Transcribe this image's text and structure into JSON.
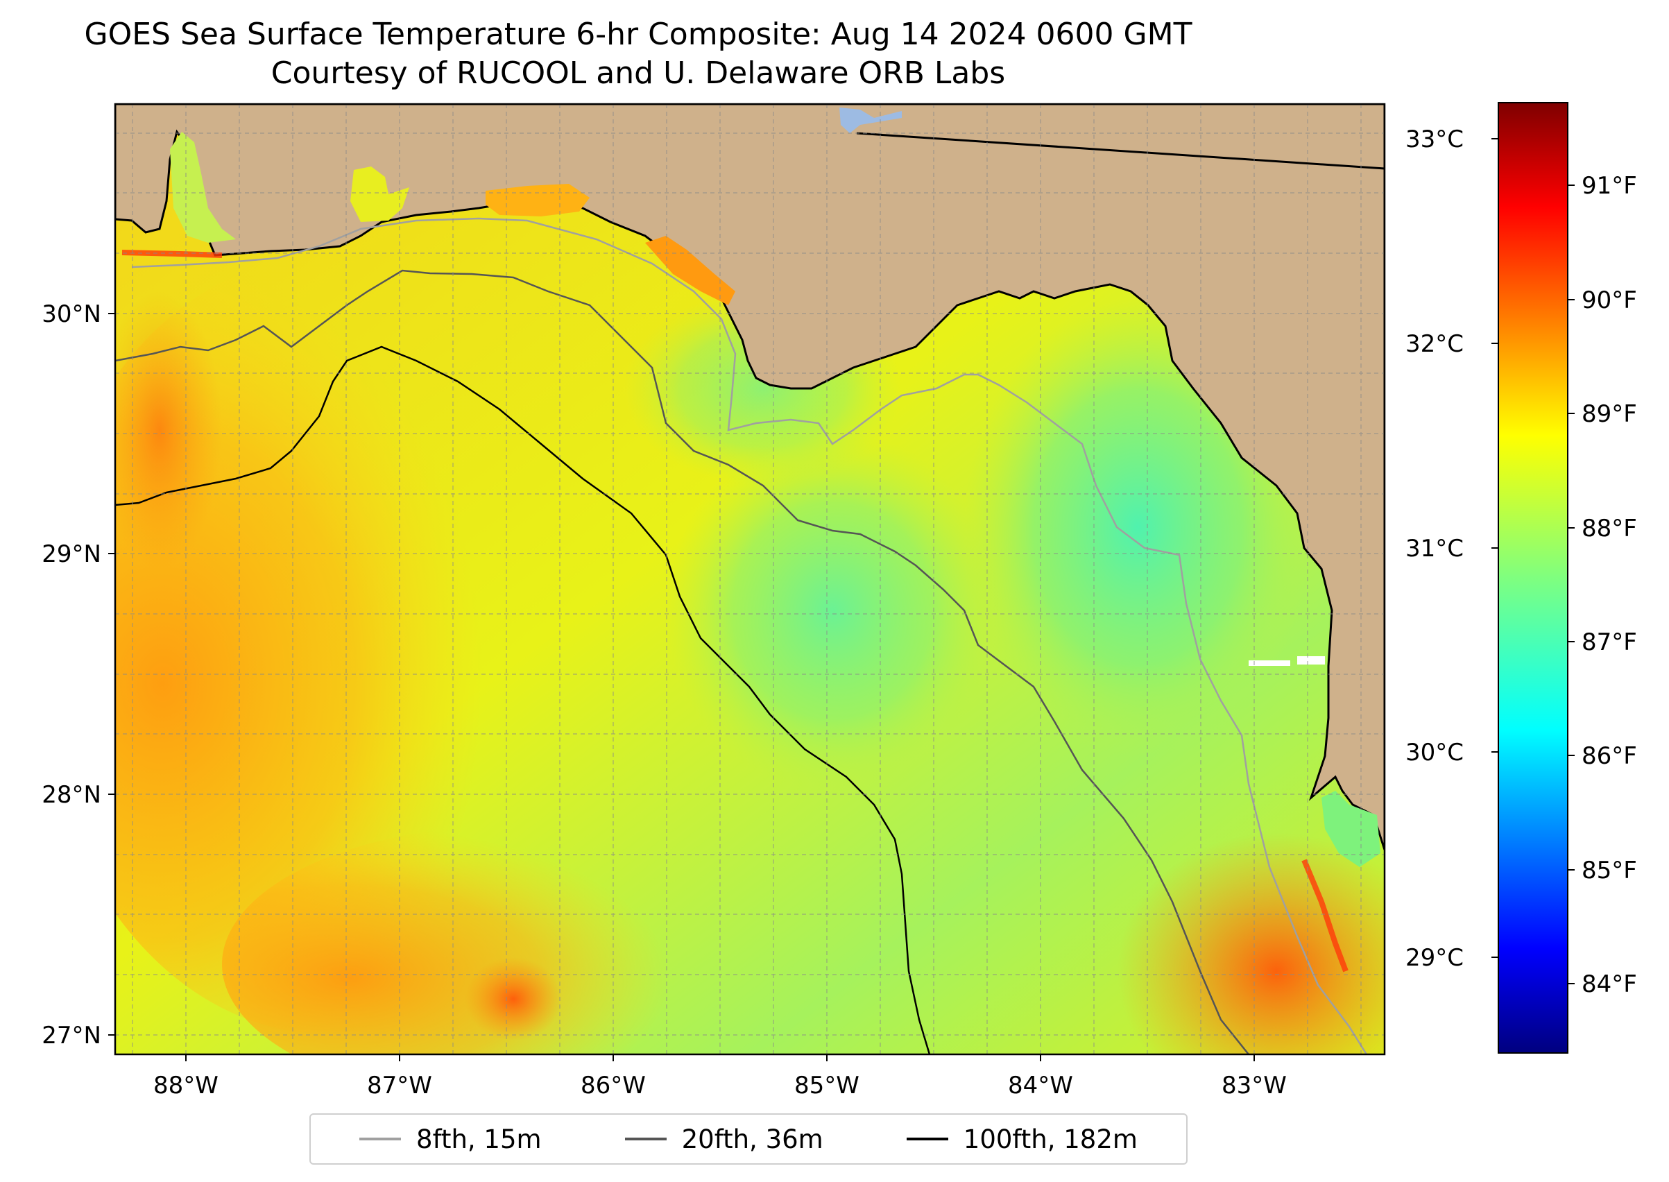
{
  "title": "GOES Sea Surface Temperature 6-hr Composite: Aug 14 2024 0600 GMT",
  "subtitle": "Courtesy of RUCOOL and U. Delaware ORB Labs",
  "map": {
    "extent": {
      "lon": [
        -88.33,
        -82.38
      ],
      "lat": [
        26.93,
        30.84
      ]
    },
    "lat_ticks": [
      "27°N",
      "28°N",
      "29°N",
      "30°N"
    ],
    "lon_ticks": [
      "88°W",
      "87°W",
      "86°W",
      "85°W",
      "84°W",
      "83°W"
    ],
    "grid": "on",
    "land_color": "#cfb18b",
    "colormap": "jet"
  },
  "colorbar": {
    "celsius_ticks": [
      "29°C",
      "30°C",
      "31°C",
      "32°C",
      "33°C"
    ],
    "fahrenheit_ticks": [
      "84°F",
      "85°F",
      "86°F",
      "87°F",
      "88°F",
      "89°F",
      "90°F",
      "91°F"
    ],
    "range_f": [
      83.4,
      91.7
    ]
  },
  "legend": {
    "items": [
      {
        "label": "8fth, 15m",
        "color": "#a0a0a0"
      },
      {
        "label": "20fth, 36m",
        "color": "#555555"
      },
      {
        "label": "100fth, 182m",
        "color": "#000000"
      }
    ]
  }
}
